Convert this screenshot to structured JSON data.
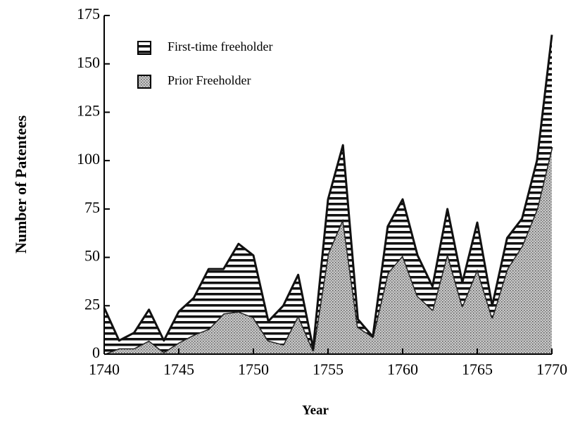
{
  "chart_data": {
    "type": "stacked_area",
    "xlabel": "Year",
    "ylabel": "Number of Patentees",
    "x": [
      1740,
      1741,
      1742,
      1743,
      1744,
      1745,
      1746,
      1747,
      1748,
      1749,
      1750,
      1751,
      1752,
      1753,
      1754,
      1755,
      1756,
      1757,
      1758,
      1759,
      1760,
      1761,
      1762,
      1763,
      1764,
      1765,
      1766,
      1767,
      1768,
      1769,
      1770
    ],
    "series": [
      {
        "name": "First-time freeholder",
        "color": "#000000",
        "pattern": "stripes",
        "values": [
          24,
          4,
          8,
          16,
          6,
          16,
          19,
          31,
          23,
          35,
          32,
          10,
          20,
          21,
          1,
          28,
          38,
          4,
          0,
          24,
          29,
          21,
          12,
          23,
          12,
          24,
          6,
          16,
          14,
          25,
          58
        ]
      },
      {
        "name": "Prior Freeholder",
        "color": "#9a9a9a",
        "pattern": "stipple",
        "values": [
          0,
          3,
          3,
          7,
          1,
          6,
          10,
          13,
          21,
          22,
          19,
          7,
          5,
          20,
          2,
          52,
          70,
          14,
          9,
          42,
          51,
          30,
          23,
          52,
          25,
          44,
          19,
          44,
          56,
          75,
          107
        ]
      }
    ],
    "stack_order": [
      1,
      0
    ],
    "xlim": [
      1740,
      1770
    ],
    "xticks": [
      1740,
      1745,
      1750,
      1755,
      1760,
      1765,
      1770
    ],
    "ylim": [
      0,
      175
    ],
    "yticks": [
      0,
      25,
      50,
      75,
      100,
      125,
      150,
      175
    ],
    "legend": "upper left"
  }
}
